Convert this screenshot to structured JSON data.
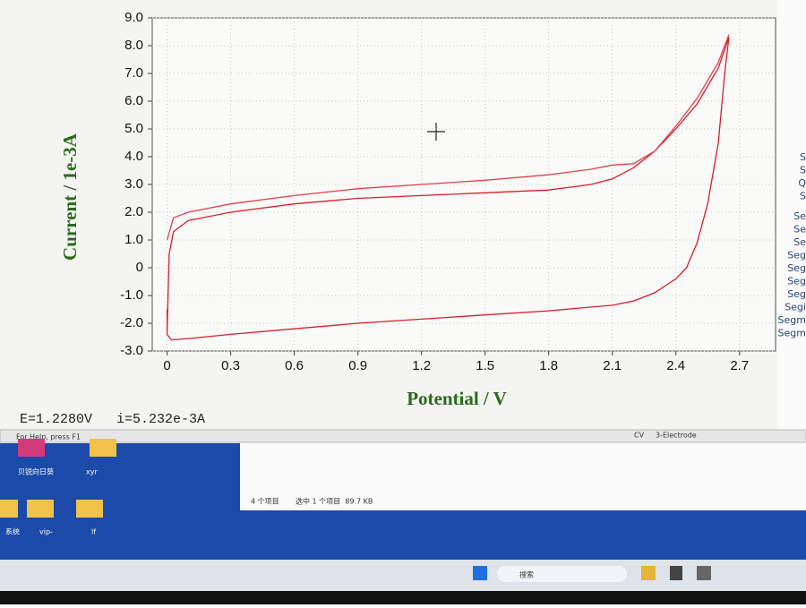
{
  "chart_data": {
    "type": "line",
    "ylabel": "Current / 1e-3A",
    "xlabel": "Potential / V",
    "xlim": [
      -0.07,
      2.87
    ],
    "ylim": [
      -3,
      9
    ],
    "xticks": [
      0,
      0.3,
      0.6,
      0.9,
      1.2,
      1.5,
      1.8,
      2.1,
      2.4,
      2.7
    ],
    "yticks": [
      {
        "value": -3,
        "label": "-3.0"
      },
      {
        "value": -2,
        "label": "-2.0"
      },
      {
        "value": -1,
        "label": "-1.0"
      },
      0,
      {
        "value": 1,
        "label": "1.0"
      },
      {
        "value": 2,
        "label": "2.0"
      },
      {
        "value": 3,
        "label": "3.0"
      },
      {
        "value": 4,
        "label": "4.0"
      },
      {
        "value": 5,
        "label": "5.0"
      },
      {
        "value": 6,
        "label": "6.0"
      },
      {
        "value": 7,
        "label": "7.0"
      },
      {
        "value": 8,
        "label": "8.0"
      },
      {
        "value": 9,
        "label": "9.0"
      }
    ],
    "grid": true,
    "series": [
      {
        "color": "#d81e2c",
        "x": [
          0.0,
          0.01,
          0.03,
          0.1,
          0.3,
          0.6,
          0.9,
          1.2,
          1.5,
          1.8,
          2.0,
          2.1,
          2.2,
          2.3,
          2.4,
          2.5,
          2.6,
          2.65,
          2.63,
          2.6,
          2.55,
          2.5,
          2.45,
          2.4,
          2.3,
          2.2,
          2.1,
          1.8,
          1.5,
          1.2,
          0.9,
          0.6,
          0.3,
          0.1,
          0.02,
          0.0,
          0.0
        ],
        "values": [
          -2.3,
          0.5,
          1.3,
          1.7,
          2.0,
          2.3,
          2.5,
          2.6,
          2.7,
          2.8,
          3.0,
          3.2,
          3.6,
          4.2,
          5.0,
          5.9,
          7.2,
          8.3,
          7.0,
          4.5,
          2.3,
          0.9,
          0.0,
          -0.4,
          -0.9,
          -1.2,
          -1.35,
          -1.55,
          -1.7,
          -1.85,
          -2.0,
          -2.2,
          -2.4,
          -2.55,
          -2.6,
          -2.4,
          -1.5
        ]
      },
      {
        "color": "#e0404c",
        "x": [
          0.0,
          0.03,
          0.1,
          0.3,
          0.6,
          0.9,
          1.2,
          1.5,
          1.8,
          2.0,
          2.1,
          2.2,
          2.3,
          2.4,
          2.5,
          2.6,
          2.65
        ],
        "values": [
          1.0,
          1.8,
          2.0,
          2.3,
          2.6,
          2.85,
          3.0,
          3.15,
          3.35,
          3.55,
          3.7,
          3.75,
          4.2,
          5.1,
          6.1,
          7.4,
          8.4
        ]
      }
    ]
  },
  "readout": "E=1.2280V   i=5.232e-3A",
  "status_bar": {
    "help": "For Help, press F1",
    "mode": "CV",
    "electrode": "3-Electrode"
  },
  "side_labels": [
    "S",
    "S",
    "Q",
    "S",
    "Se",
    "Se",
    "Se",
    "Seg",
    "Seg",
    "Seg",
    "Seg",
    "Segi",
    "Segm",
    "Segm"
  ],
  "desktop": {
    "icons": [
      "贝锐向日葵",
      "xyr",
      "系统",
      "vip-",
      "lf"
    ]
  },
  "explorer": {
    "count": "4 个项目",
    "selected": "选中 1 个项目  89.7 KB"
  },
  "taskbar": {
    "search": "搜索"
  }
}
